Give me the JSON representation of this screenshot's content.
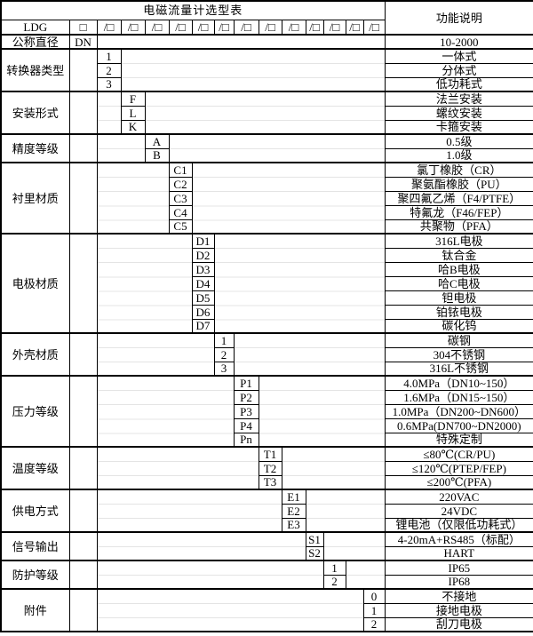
{
  "table": {
    "title": "电磁流量计选型表",
    "function_header": "功能说明",
    "model_code": "LDG",
    "first_box": "□",
    "slot_box": "/□",
    "slot_count": 13,
    "colors": {
      "border": "#000000",
      "background": "#ffffff",
      "faint_grid": "#e4e4e4",
      "text": "#000000"
    },
    "groups": [
      {
        "name": "公称直径",
        "slot": -1,
        "name_align": "left",
        "rows": [
          {
            "code": "DN",
            "desc": "10-2000"
          }
        ]
      },
      {
        "name": "转换器类型",
        "slot": 0,
        "name_align": "left",
        "rows": [
          {
            "code": "1",
            "desc": "一体式"
          },
          {
            "code": "2",
            "desc": "分体式"
          },
          {
            "code": "3",
            "desc": "低功耗式"
          }
        ]
      },
      {
        "name": "安装形式",
        "slot": 1,
        "rows": [
          {
            "code": "F",
            "desc": "法兰安装"
          },
          {
            "code": "L",
            "desc": "螺纹安装"
          },
          {
            "code": "K",
            "desc": "卡箍安装"
          }
        ]
      },
      {
        "name": "精度等级",
        "slot": 2,
        "rows": [
          {
            "code": "A",
            "desc": "0.5级"
          },
          {
            "code": "B",
            "desc": "1.0级"
          }
        ]
      },
      {
        "name": "衬里材质",
        "slot": 3,
        "rows": [
          {
            "code": "C1",
            "desc": "氯丁橡胶（CR）"
          },
          {
            "code": "C2",
            "desc": "聚氨酯橡胶（PU）"
          },
          {
            "code": "C3",
            "desc": "聚四氟乙烯（F4/PTFE）"
          },
          {
            "code": "C4",
            "desc": "特氟龙（F46/FEP）"
          },
          {
            "code": "C5",
            "desc": "共聚物（PFA）"
          }
        ]
      },
      {
        "name": "电极材质",
        "slot": 4,
        "rows": [
          {
            "code": "D1",
            "desc": "316L电极"
          },
          {
            "code": "D2",
            "desc": "钛合金"
          },
          {
            "code": "D3",
            "desc": "哈B电极"
          },
          {
            "code": "D4",
            "desc": "哈C电极"
          },
          {
            "code": "D5",
            "desc": "钽电极"
          },
          {
            "code": "D6",
            "desc": "铂铱电极"
          },
          {
            "code": "D7",
            "desc": "碳化钨"
          }
        ]
      },
      {
        "name": "外壳材质",
        "slot": 5,
        "rows": [
          {
            "code": "1",
            "desc": "碳钢"
          },
          {
            "code": "2",
            "desc": "304不锈钢"
          },
          {
            "code": "3",
            "desc": "316L不锈钢"
          }
        ]
      },
      {
        "name": "压力等级",
        "slot": 6,
        "rows": [
          {
            "code": "P1",
            "desc": "4.0MPa（DN10~150）",
            "align": "left"
          },
          {
            "code": "P2",
            "desc": "1.6MPa（DN15~150）",
            "align": "left"
          },
          {
            "code": "P3",
            "desc": "1.0MPa（DN200~DN600）",
            "align": "left"
          },
          {
            "code": "P4",
            "desc": "0.6MPa(DN700~DN2000)",
            "align": "left"
          },
          {
            "code": "Pn",
            "desc": "特殊定制"
          }
        ]
      },
      {
        "name": "温度等级",
        "slot": 7,
        "rows": [
          {
            "code": "T1",
            "desc": "≤80℃(CR/PU)"
          },
          {
            "code": "T2",
            "desc": "≤120℃(PTEP/FEP)"
          },
          {
            "code": "T3",
            "desc": "≤200℃(PFA)"
          }
        ]
      },
      {
        "name": "供电方式",
        "slot": 8,
        "rows": [
          {
            "code": "E1",
            "desc": "220VAC"
          },
          {
            "code": "E2",
            "desc": "24VDC"
          },
          {
            "code": "E3",
            "desc": "锂电池（仅限低功耗式）"
          }
        ]
      },
      {
        "name": "信号输出",
        "slot": 9,
        "rows": [
          {
            "code": "S1",
            "desc": "4-20mA+RS485（标配）"
          },
          {
            "code": "S2",
            "desc": "HART"
          }
        ]
      },
      {
        "name": "防护等级",
        "slot": 10,
        "rows": [
          {
            "code": "1",
            "desc": "IP65"
          },
          {
            "code": "2",
            "desc": "IP68"
          }
        ]
      },
      {
        "name": "附件",
        "slot": 12,
        "rows": [
          {
            "code": "0",
            "desc": "不接地"
          },
          {
            "code": "1",
            "desc": "接地电极"
          },
          {
            "code": "2",
            "desc": "刮刀电极"
          }
        ]
      }
    ]
  }
}
